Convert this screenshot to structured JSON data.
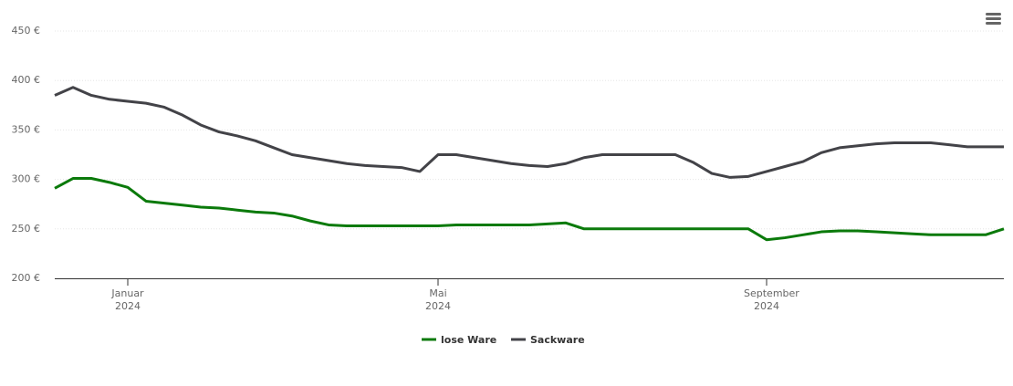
{
  "chart_data": {
    "type": "line",
    "categories": [
      null,
      null,
      null,
      null,
      "Januar 2024",
      null,
      null,
      null,
      null,
      null,
      null,
      null,
      null,
      null,
      null,
      null,
      null,
      null,
      null,
      null,
      null,
      "Mai 2024",
      null,
      null,
      null,
      null,
      null,
      null,
      null,
      null,
      null,
      null,
      null,
      null,
      null,
      null,
      null,
      null,
      null,
      "September 2024",
      null,
      null,
      null,
      null,
      null,
      null,
      null,
      null,
      null,
      null,
      null,
      null,
      null
    ],
    "series": [
      {
        "name": "lose Ware",
        "color": "#0b7a0b",
        "values": [
          291,
          301,
          301,
          297,
          292,
          278,
          276,
          274,
          272,
          271,
          269,
          267,
          266,
          263,
          258,
          254,
          253,
          253,
          253,
          253,
          253,
          253,
          254,
          254,
          254,
          254,
          254,
          255,
          256,
          250,
          250,
          250,
          250,
          250,
          250,
          250,
          250,
          250,
          250,
          239,
          241,
          244,
          247,
          248,
          248,
          247,
          246,
          245,
          244,
          244,
          244,
          244,
          250
        ]
      },
      {
        "name": "Sackware",
        "color": "#434348",
        "values": [
          385,
          393,
          385,
          381,
          379,
          377,
          373,
          365,
          355,
          348,
          344,
          339,
          332,
          325,
          322,
          319,
          316,
          314,
          313,
          312,
          308,
          325,
          325,
          322,
          319,
          316,
          314,
          313,
          316,
          322,
          325,
          325,
          325,
          325,
          325,
          317,
          306,
          302,
          303,
          308,
          313,
          318,
          327,
          332,
          334,
          336,
          337,
          337,
          337,
          335,
          333,
          333,
          333
        ]
      }
    ],
    "ylim": [
      200,
      450
    ],
    "yticks": [
      {
        "value": 200,
        "label": "200 €"
      },
      {
        "value": 250,
        "label": "250 €"
      },
      {
        "value": 300,
        "label": "300 €"
      },
      {
        "value": 350,
        "label": "350 €"
      },
      {
        "value": 400,
        "label": "400 €"
      },
      {
        "value": 450,
        "label": "450 €"
      }
    ],
    "grid": true
  }
}
